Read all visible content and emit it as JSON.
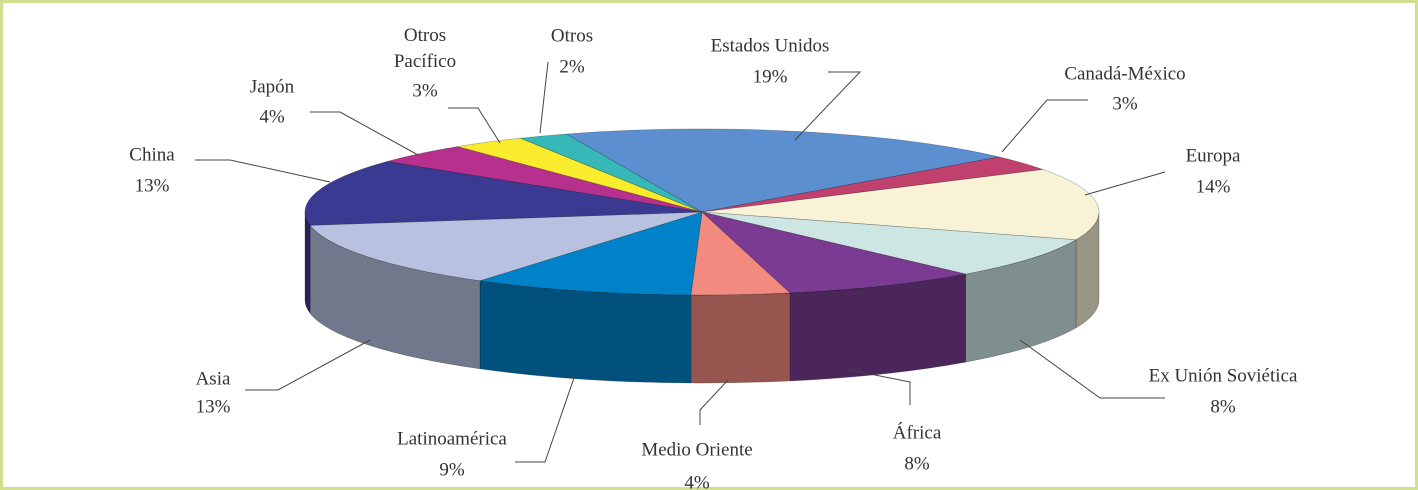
{
  "chart_data": {
    "type": "pie",
    "categories": [
      "Estados Unidos",
      "Canadá-México",
      "Europa",
      "Ex Unión Soviética",
      "África",
      "Medio Oriente",
      "Latinoamérica",
      "Asia",
      "China",
      "Japón",
      "Otros Pacífico",
      "Otros"
    ],
    "values": [
      19,
      3,
      14,
      8,
      8,
      4,
      9,
      13,
      13,
      4,
      3,
      2
    ],
    "value_labels": [
      "19%",
      "3%",
      "14%",
      "8%",
      "8%",
      "4%",
      "9%",
      "13%",
      "13%",
      "4%",
      "3%",
      "2%"
    ],
    "colors": [
      "#5b8fcf",
      "#c0406e",
      "#f8f2d6",
      "#cde6e3",
      "#7b3b92",
      "#f28a80",
      "#0082c8",
      "#b8c2e0",
      "#3a3a93",
      "#b8308e",
      "#f8ec2c",
      "#36b8b8"
    ]
  }
}
